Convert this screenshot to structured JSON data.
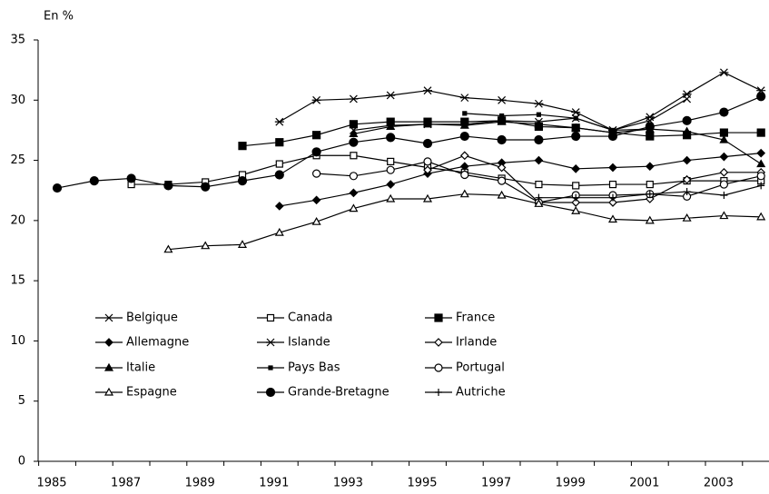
{
  "chart_data": {
    "type": "line",
    "y_axis_label": "En %",
    "categories": [
      "1985",
      null,
      "1987",
      null,
      "1989",
      null,
      "1991",
      null,
      "1993",
      null,
      "1995",
      null,
      "1997",
      null,
      "1999",
      null,
      "2001",
      null,
      "2003",
      null
    ],
    "ylim": [
      0,
      35
    ],
    "yticks": [
      0,
      5,
      10,
      15,
      20,
      25,
      30,
      35
    ],
    "grid": false,
    "series": [
      {
        "name": "Belgique",
        "color": "#000000",
        "marker": "x",
        "values": [
          null,
          null,
          null,
          null,
          null,
          null,
          null,
          null,
          27.5,
          27.9,
          28.0,
          28.0,
          28.3,
          28.2,
          28.5,
          27.5,
          28.3,
          30.1,
          null,
          null
        ]
      },
      {
        "name": "Canada",
        "color": "#000000",
        "marker": "square-open",
        "values": [
          null,
          null,
          23.0,
          23.0,
          23.2,
          23.8,
          24.7,
          25.4,
          25.4,
          24.9,
          24.4,
          24.0,
          23.5,
          23.0,
          22.9,
          23.0,
          23.0,
          23.3,
          23.3,
          23.3
        ]
      },
      {
        "name": "France",
        "color": "#000000",
        "marker": "square",
        "values": [
          null,
          null,
          null,
          null,
          null,
          26.2,
          26.5,
          27.1,
          28.0,
          28.2,
          28.2,
          28.2,
          28.3,
          27.8,
          27.7,
          27.3,
          27.0,
          27.1,
          27.3,
          27.3
        ]
      },
      {
        "name": "Allemagne",
        "color": "#000000",
        "marker": "diamond",
        "values": [
          null,
          null,
          null,
          null,
          null,
          null,
          21.2,
          21.7,
          22.3,
          23.0,
          23.9,
          24.5,
          24.8,
          25.0,
          24.3,
          24.4,
          24.5,
          25.0,
          25.3,
          25.6
        ]
      },
      {
        "name": "Islande",
        "color": "#000000",
        "marker": "star",
        "values": [
          null,
          null,
          null,
          null,
          null,
          null,
          28.2,
          30.0,
          30.1,
          30.4,
          30.8,
          30.2,
          30.0,
          29.7,
          29.0,
          27.5,
          28.6,
          30.5,
          32.3,
          30.8
        ]
      },
      {
        "name": "Irlande",
        "color": "#000000",
        "marker": "diamond-open",
        "values": [
          null,
          null,
          null,
          null,
          null,
          null,
          null,
          null,
          null,
          null,
          24.2,
          25.4,
          24.4,
          21.5,
          21.5,
          21.5,
          21.8,
          23.4,
          24.0,
          24.0
        ]
      },
      {
        "name": "Italie",
        "color": "#000000",
        "marker": "triangle",
        "values": [
          null,
          null,
          null,
          null,
          null,
          null,
          null,
          null,
          27.2,
          27.8,
          28.0,
          27.9,
          28.2,
          28.0,
          27.7,
          27.3,
          27.6,
          27.4,
          26.7,
          24.7
        ]
      },
      {
        "name": "Pays Bas",
        "color": "#000000",
        "marker": "square-small",
        "values": [
          null,
          null,
          null,
          null,
          null,
          null,
          null,
          null,
          null,
          null,
          null,
          28.9,
          28.7,
          28.8,
          28.5,
          27.5,
          27.6,
          null,
          null,
          null
        ]
      },
      {
        "name": "Portugal",
        "color": "#000000",
        "marker": "circle-open",
        "values": [
          null,
          null,
          null,
          null,
          null,
          null,
          null,
          23.9,
          23.7,
          24.2,
          24.9,
          23.8,
          23.3,
          21.5,
          22.1,
          22.1,
          22.2,
          22.0,
          23.0,
          23.7
        ]
      },
      {
        "name": "Espagne",
        "color": "#000000",
        "marker": "triangle-open",
        "values": [
          null,
          null,
          null,
          17.6,
          17.9,
          18.0,
          19.0,
          19.9,
          21.0,
          21.8,
          21.8,
          22.2,
          22.1,
          21.4,
          20.8,
          20.1,
          20.0,
          20.2,
          20.4,
          20.3
        ]
      },
      {
        "name": "Grande-Bretagne",
        "color": "#000000",
        "marker": "circle",
        "values": [
          22.7,
          23.3,
          23.5,
          22.9,
          22.8,
          23.3,
          23.8,
          25.7,
          26.5,
          26.9,
          26.4,
          27.0,
          26.7,
          26.7,
          27.0,
          27.0,
          27.8,
          28.3,
          29.0,
          30.3
        ]
      },
      {
        "name": "Autriche",
        "color": "#000000",
        "marker": "plus",
        "values": [
          null,
          null,
          null,
          null,
          null,
          null,
          null,
          null,
          null,
          null,
          null,
          null,
          null,
          21.9,
          21.9,
          21.9,
          22.2,
          22.4,
          22.1,
          22.9
        ]
      }
    ]
  }
}
